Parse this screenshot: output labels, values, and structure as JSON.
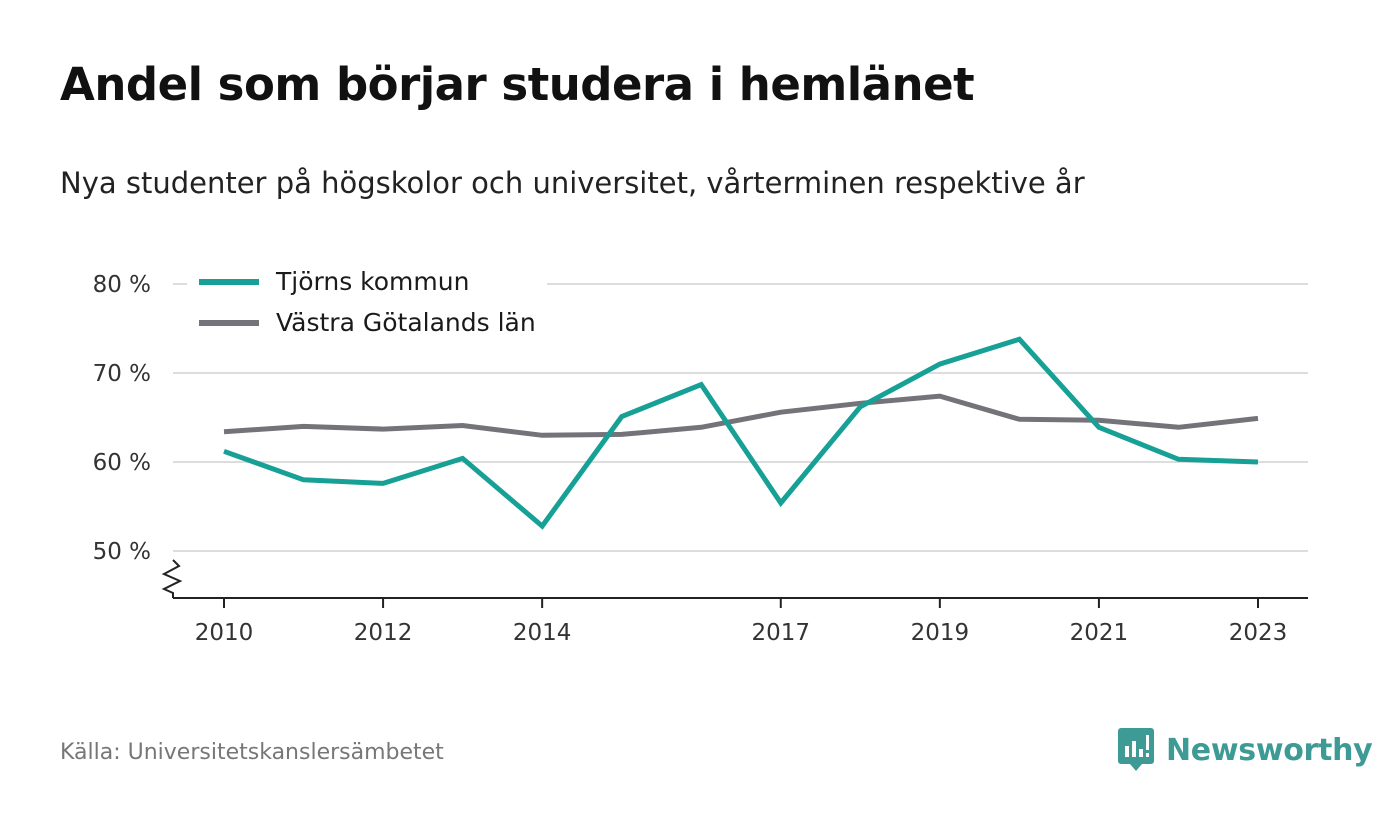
{
  "header": {
    "title": "Andel som börjar studera i hemlänet",
    "subtitle": "Nya studenter på högskolor och universitet, vårterminen respektive år"
  },
  "footer": {
    "source": "Källa: Universitetskanslersämbetet",
    "brand": "Newsworthy",
    "brand_color": "#3d9a94"
  },
  "chart_data": {
    "type": "line",
    "x": [
      2010,
      2011,
      2012,
      2013,
      2014,
      2015,
      2016,
      2017,
      2018,
      2019,
      2020,
      2021,
      2022,
      2023
    ],
    "x_tick_labels": [
      "2010",
      "2012",
      "2014",
      "2017",
      "2019",
      "2021",
      "2023"
    ],
    "y_tick_labels": [
      "50 %",
      "60 %",
      "70 %",
      "80 %"
    ],
    "y_ticks": [
      50,
      60,
      70,
      80
    ],
    "ylim": [
      45,
      80
    ],
    "grid": true,
    "axis_break": true,
    "legend_position": "top-left",
    "series": [
      {
        "name": "Tjörns kommun",
        "color": "#17a095",
        "values": [
          61.2,
          58.0,
          57.6,
          60.4,
          52.8,
          65.1,
          68.7,
          55.4,
          66.2,
          71.0,
          73.8,
          63.9,
          60.3,
          60.0
        ]
      },
      {
        "name": "Västra Götalands län",
        "color": "#75737a",
        "values": [
          63.4,
          64.0,
          63.7,
          64.1,
          63.0,
          63.1,
          63.9,
          65.6,
          66.6,
          67.4,
          64.8,
          64.7,
          63.9,
          64.9
        ]
      }
    ]
  }
}
